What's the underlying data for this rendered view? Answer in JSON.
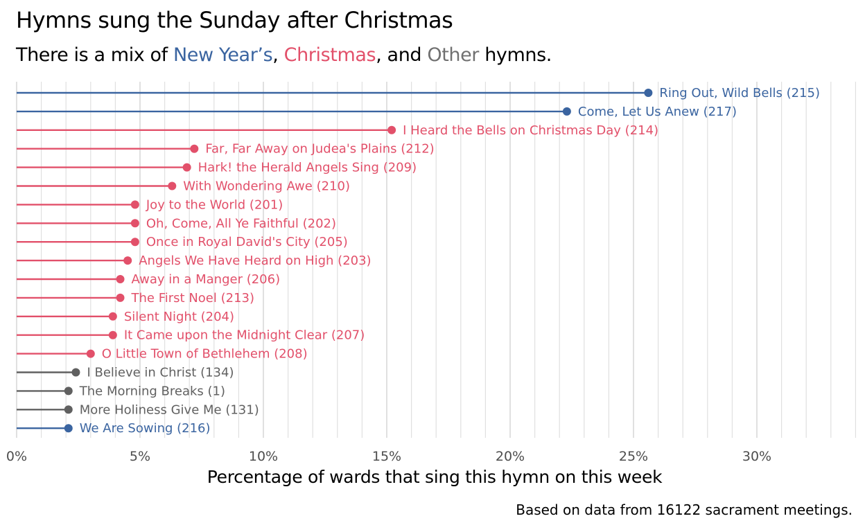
{
  "title": "Hymns sung the Sunday after Christmas",
  "subtitle": {
    "prefix": "There is a mix of ",
    "group_newyear": "New Year’s",
    "sep1": ", ",
    "group_christmas": "Christmas",
    "sep2": ", and ",
    "group_other": "Other",
    "suffix": " hymns."
  },
  "caption": "Based on data from 16122 sacrament meetings.",
  "colors": {
    "newyear": "#3a64a0",
    "christmas": "#e2506a",
    "other": "#606060",
    "grid": "#e0e0e0"
  },
  "chart_data": {
    "type": "lollipop",
    "xlabel": "Percentage of wards that sing this hymn on this week",
    "ylabel": "",
    "xlim": [
      0,
      34
    ],
    "x_ticks": [
      "0%",
      "5%",
      "10%",
      "15%",
      "20%",
      "25%",
      "30%"
    ],
    "x_tick_values": [
      0,
      5,
      10,
      15,
      20,
      25,
      30
    ],
    "grid": true,
    "series": [
      {
        "label": "Ring Out, Wild Bells (215)",
        "value": 25.6,
        "group": "newyear"
      },
      {
        "label": "Come, Let Us Anew (217)",
        "value": 22.3,
        "group": "newyear"
      },
      {
        "label": "I Heard the Bells on Christmas Day (214)",
        "value": 15.2,
        "group": "christmas"
      },
      {
        "label": "Far, Far Away on Judea's Plains (212)",
        "value": 7.2,
        "group": "christmas"
      },
      {
        "label": "Hark! the Herald Angels Sing (209)",
        "value": 6.9,
        "group": "christmas"
      },
      {
        "label": "With Wondering Awe (210)",
        "value": 6.3,
        "group": "christmas"
      },
      {
        "label": "Joy to the World (201)",
        "value": 4.8,
        "group": "christmas"
      },
      {
        "label": "Oh, Come, All Ye Faithful (202)",
        "value": 4.8,
        "group": "christmas"
      },
      {
        "label": "Once in Royal David's City (205)",
        "value": 4.8,
        "group": "christmas"
      },
      {
        "label": "Angels We Have Heard on High (203)",
        "value": 4.5,
        "group": "christmas"
      },
      {
        "label": "Away in a Manger (206)",
        "value": 4.2,
        "group": "christmas"
      },
      {
        "label": "The First Noel (213)",
        "value": 4.2,
        "group": "christmas"
      },
      {
        "label": "Silent Night (204)",
        "value": 3.9,
        "group": "christmas"
      },
      {
        "label": "It Came upon the Midnight Clear (207)",
        "value": 3.9,
        "group": "christmas"
      },
      {
        "label": "O Little Town of Bethlehem (208)",
        "value": 3.0,
        "group": "christmas"
      },
      {
        "label": "I Believe in Christ (134)",
        "value": 2.4,
        "group": "other"
      },
      {
        "label": "The Morning Breaks (1)",
        "value": 2.1,
        "group": "other"
      },
      {
        "label": "More Holiness Give Me (131)",
        "value": 2.1,
        "group": "other"
      },
      {
        "label": "We Are Sowing (216)",
        "value": 2.1,
        "group": "newyear"
      }
    ]
  }
}
